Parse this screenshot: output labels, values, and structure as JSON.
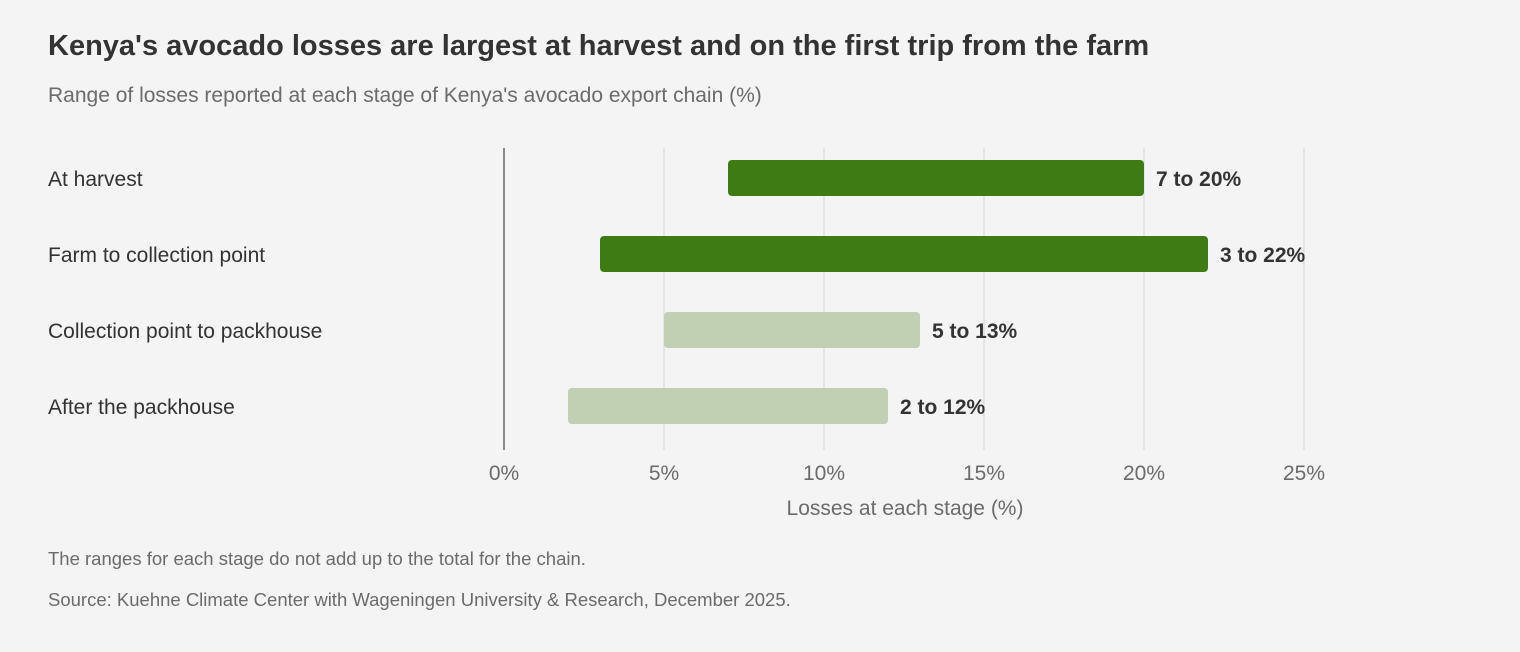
{
  "title": "Kenya's avocado losses are largest at harvest and on the first trip from the farm",
  "subtitle": "Range of losses reported at each stage of Kenya's avocado export chain (%)",
  "note": "The ranges for each stage do not add up to the total for the chain.",
  "source": "Source: Kuehne Climate Center with Wageningen University & Research, December 2025.",
  "colors": {
    "highlight": "#3f7b14",
    "muted": "#c1cfb3",
    "grid": "#dedede",
    "axis": "#888888",
    "text": "#333333",
    "subtle": "#6b6b6b"
  },
  "chart_data": {
    "type": "bar",
    "orientation": "horizontal",
    "subtype": "range",
    "categories": [
      "At harvest",
      "Farm to collection point",
      "Collection point to packhouse",
      "After the packhouse"
    ],
    "ranges": [
      [
        7,
        20
      ],
      [
        3,
        22
      ],
      [
        5,
        13
      ],
      [
        2,
        12
      ]
    ],
    "labels": [
      "7 to 20%",
      "3 to 22%",
      "5 to 13%",
      "2 to 12%"
    ],
    "highlighted": [
      true,
      true,
      false,
      false
    ],
    "xlabel": "Losses at each stage (%)",
    "xlim": [
      0,
      25
    ],
    "xticks": [
      0,
      5,
      10,
      15,
      20,
      25
    ],
    "xtick_labels": [
      "0%",
      "5%",
      "10%",
      "15%",
      "20%",
      "25%"
    ],
    "grid": true,
    "legend": "none"
  }
}
